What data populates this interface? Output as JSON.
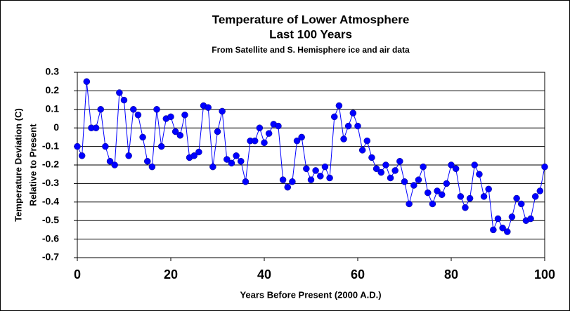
{
  "chart_data": {
    "type": "line",
    "title": [
      "Temperature of Lower Atmosphere",
      "Last 100 Years"
    ],
    "subtitle": "From Satellite and S. Hemisphere ice and air data",
    "x_label": "Years Before Present (2000 A.D.)",
    "y_label": [
      "Temperature Deviation (C)",
      "Relative to Present"
    ],
    "x": [
      0,
      1,
      2,
      3,
      4,
      5,
      6,
      7,
      8,
      9,
      10,
      11,
      12,
      13,
      14,
      15,
      16,
      17,
      18,
      19,
      20,
      21,
      22,
      23,
      24,
      25,
      26,
      27,
      28,
      29,
      30,
      31,
      32,
      33,
      34,
      35,
      36,
      37,
      38,
      39,
      40,
      41,
      42,
      43,
      44,
      45,
      46,
      47,
      48,
      49,
      50,
      51,
      52,
      53,
      54,
      55,
      56,
      57,
      58,
      59,
      60,
      61,
      62,
      63,
      64,
      65,
      66,
      67,
      68,
      69,
      70,
      71,
      72,
      73,
      74,
      75,
      76,
      77,
      78,
      79,
      80,
      81,
      82,
      83,
      84,
      85,
      86,
      87,
      88,
      89,
      90,
      91,
      92,
      93,
      94,
      95,
      96,
      97,
      98,
      99,
      100
    ],
    "series": [
      {
        "name": "Temperature deviation",
        "color": "#0000ff",
        "values": [
          -0.1,
          -0.15,
          0.25,
          0,
          0,
          0.1,
          -0.1,
          -0.18,
          -0.2,
          0.19,
          0.15,
          -0.15,
          0.1,
          0.07,
          -0.05,
          -0.18,
          -0.21,
          0.1,
          -0.1,
          0.05,
          0.06,
          -0.02,
          -0.04,
          0.07,
          -0.16,
          -0.15,
          -0.13,
          0.12,
          0.11,
          -0.21,
          -0.02,
          0.09,
          -0.17,
          -0.19,
          -0.15,
          -0.18,
          -0.29,
          -0.07,
          -0.07,
          0,
          -0.08,
          -0.03,
          0.02,
          0.01,
          -0.28,
          -0.32,
          -0.29,
          -0.07,
          -0.05,
          -0.22,
          -0.28,
          -0.23,
          -0.26,
          -0.21,
          -0.27,
          0.06,
          0.12,
          -0.06,
          0.01,
          0.08,
          0.01,
          -0.12,
          -0.07,
          -0.16,
          -0.22,
          -0.24,
          -0.2,
          -0.27,
          -0.23,
          -0.18,
          -0.29,
          -0.41,
          -0.31,
          -0.28,
          -0.21,
          -0.35,
          -0.41,
          -0.34,
          -0.36,
          -0.3,
          -0.2,
          -0.22,
          -0.37,
          -0.43,
          -0.38,
          -0.2,
          -0.25,
          -0.37,
          -0.33,
          -0.55,
          -0.49,
          -0.54,
          -0.56,
          -0.48,
          -0.38,
          -0.41,
          -0.5,
          -0.49,
          -0.37,
          -0.34,
          -0.21
        ]
      }
    ],
    "xlim": [
      0,
      100
    ],
    "xticks": [
      0,
      20,
      40,
      60,
      80,
      100
    ],
    "ylim": [
      -0.7,
      0.3
    ],
    "yticks": [
      0.3,
      0.2,
      0.1,
      0,
      -0.1,
      -0.2,
      -0.3,
      -0.4,
      -0.5,
      -0.6,
      -0.7
    ],
    "grid": true
  }
}
